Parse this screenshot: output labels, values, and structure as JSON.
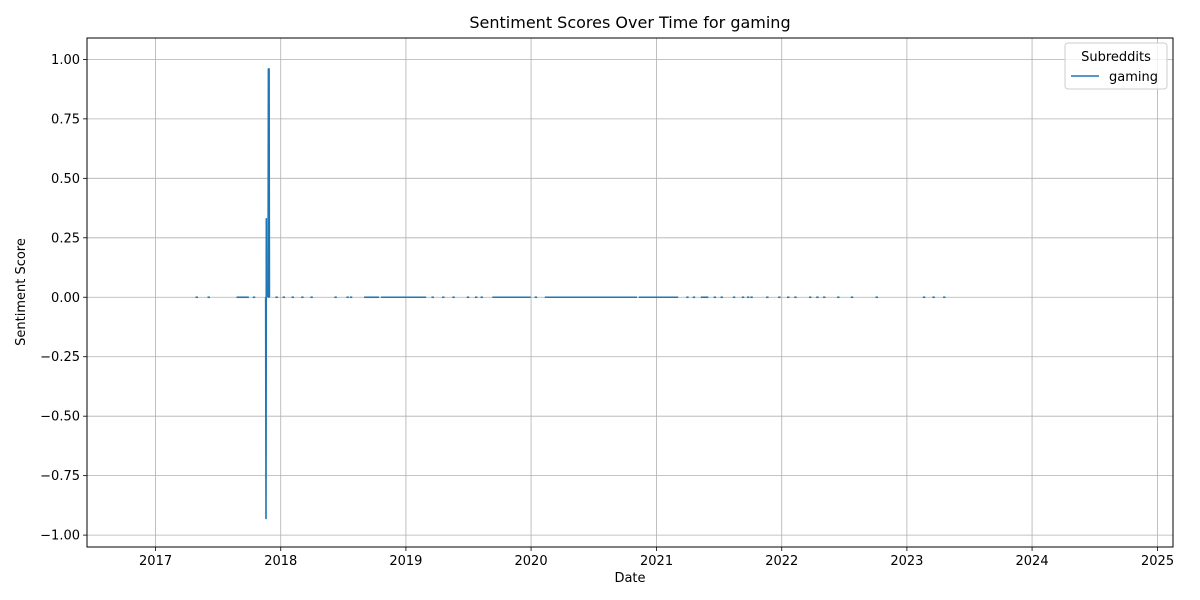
{
  "chart_data": {
    "type": "line",
    "title": "Sentiment Scores Over Time for gaming",
    "xlabel": "Date",
    "ylabel": "Sentiment Score",
    "xlim": [
      "2016-06-15",
      "2025-02-15"
    ],
    "ylim": [
      -1.05,
      1.09
    ],
    "x_ticks": [
      "2017",
      "2018",
      "2019",
      "2020",
      "2021",
      "2022",
      "2023",
      "2024",
      "2025"
    ],
    "y_ticks": [
      1.0,
      0.75,
      0.5,
      0.25,
      0.0,
      -0.25,
      -0.5,
      -0.75,
      -1.0
    ],
    "y_tick_labels": [
      "1.00",
      "0.75",
      "0.50",
      "0.25",
      "0.00",
      "−0.25",
      "−0.50",
      "−0.75",
      "−1.00"
    ],
    "grid": true,
    "legend": {
      "title": "Subreddits",
      "position": "top-right"
    },
    "series": [
      {
        "name": "gaming",
        "color": "#1f77b4",
        "segments": [
          [
            [
              "2017-11-18",
              0.0
            ],
            [
              "2017-11-19",
              -0.93
            ],
            [
              "2017-11-20",
              0.33
            ],
            [
              "2017-11-21",
              0.0
            ]
          ],
          [
            [
              "2017-11-25",
              0.0
            ],
            [
              "2017-11-26",
              0.96
            ],
            [
              "2017-11-27",
              0.0
            ],
            [
              "2017-11-28",
              0.96
            ],
            [
              "2017-11-29",
              0.0
            ]
          ],
          [
            [
              "2017-08-25",
              0.0
            ],
            [
              "2017-09-30",
              0.0
            ]
          ],
          [
            [
              "2018-09-01",
              0.0
            ],
            [
              "2018-10-15",
              0.0
            ]
          ],
          [
            [
              "2018-10-20",
              0.0
            ],
            [
              "2019-03-01",
              0.0
            ]
          ],
          [
            [
              "2019-09-10",
              0.0
            ],
            [
              "2019-12-31",
              0.0
            ]
          ],
          [
            [
              "2020-02-10",
              0.0
            ],
            [
              "2020-11-05",
              0.0
            ]
          ],
          [
            [
              "2020-11-10",
              0.0
            ],
            [
              "2021-03-05",
              0.0
            ]
          ],
          [
            [
              "2021-05-10",
              0.0
            ],
            [
              "2021-06-01",
              0.0
            ]
          ]
        ],
        "points": [
          [
            "2017-05-01",
            0.0
          ],
          [
            "2017-06-05",
            0.0
          ],
          [
            "2017-10-15",
            0.0
          ],
          [
            "2017-12-20",
            0.0
          ],
          [
            "2018-01-10",
            0.0
          ],
          [
            "2018-02-05",
            0.0
          ],
          [
            "2018-03-05",
            0.0
          ],
          [
            "2018-04-01",
            0.0
          ],
          [
            "2018-06-10",
            0.0
          ],
          [
            "2018-07-15",
            0.0
          ],
          [
            "2018-07-25",
            0.0
          ],
          [
            "2019-03-20",
            0.0
          ],
          [
            "2019-04-20",
            0.0
          ],
          [
            "2019-05-20",
            0.0
          ],
          [
            "2019-07-01",
            0.0
          ],
          [
            "2019-07-25",
            0.0
          ],
          [
            "2019-08-10",
            0.0
          ],
          [
            "2020-01-15",
            0.0
          ],
          [
            "2021-04-01",
            0.0
          ],
          [
            "2021-04-20",
            0.0
          ],
          [
            "2021-06-20",
            0.0
          ],
          [
            "2021-07-10",
            0.0
          ],
          [
            "2021-08-15",
            0.0
          ],
          [
            "2021-09-10",
            0.0
          ],
          [
            "2021-09-25",
            0.0
          ],
          [
            "2021-10-05",
            0.0
          ],
          [
            "2021-11-20",
            0.0
          ],
          [
            "2021-12-25",
            0.0
          ],
          [
            "2022-01-20",
            0.0
          ],
          [
            "2022-02-10",
            0.0
          ],
          [
            "2022-03-25",
            0.0
          ],
          [
            "2022-04-15",
            0.0
          ],
          [
            "2022-05-05",
            0.0
          ],
          [
            "2022-06-15",
            0.0
          ],
          [
            "2022-07-25",
            0.0
          ],
          [
            "2022-10-05",
            0.0
          ],
          [
            "2023-02-20",
            0.0
          ],
          [
            "2023-03-20",
            0.0
          ],
          [
            "2023-04-20",
            0.0
          ]
        ]
      }
    ]
  }
}
